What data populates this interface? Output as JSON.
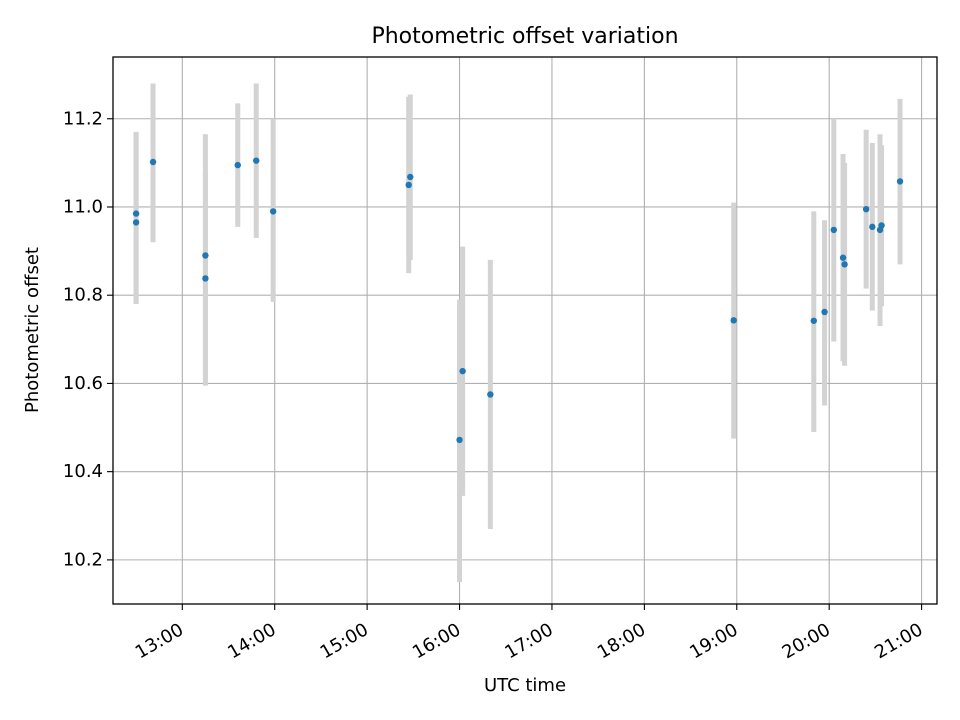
{
  "chart_data": {
    "type": "scatter",
    "title": "Photometric offset variation",
    "xlabel": "UTC time",
    "ylabel": "Photometric offset",
    "x_ticks": [
      "13:00",
      "14:00",
      "15:00",
      "16:00",
      "17:00",
      "18:00",
      "19:00",
      "20:00",
      "21:00"
    ],
    "y_ticks": [
      "10.2",
      "10.4",
      "10.6",
      "10.8",
      "11.0",
      "11.2"
    ],
    "xlim": [
      "12:15",
      "21:10"
    ],
    "ylim": [
      10.1,
      11.34
    ],
    "grid": true,
    "point_color": "#1f77b4",
    "errorbar_color": "#d3d3d3",
    "points": [
      {
        "x": "12:30",
        "y": 10.985,
        "lo": 10.78,
        "hi": 11.17
      },
      {
        "x": "12:30",
        "y": 10.965,
        "lo": 10.78,
        "hi": 11.17
      },
      {
        "x": "12:41",
        "y": 11.102,
        "lo": 10.92,
        "hi": 11.28
      },
      {
        "x": "13:15",
        "y": 10.89,
        "lo": 10.61,
        "hi": 11.165
      },
      {
        "x": "13:15",
        "y": 10.838,
        "lo": 10.595,
        "hi": 11.08
      },
      {
        "x": "13:36",
        "y": 11.095,
        "lo": 10.955,
        "hi": 11.235
      },
      {
        "x": "13:48",
        "y": 11.105,
        "lo": 10.93,
        "hi": 11.28
      },
      {
        "x": "13:59",
        "y": 10.99,
        "lo": 10.785,
        "hi": 11.2
      },
      {
        "x": "15:27",
        "y": 11.05,
        "lo": 10.85,
        "hi": 11.25
      },
      {
        "x": "15:28",
        "y": 11.068,
        "lo": 10.88,
        "hi": 11.255
      },
      {
        "x": "16:00",
        "y": 10.472,
        "lo": 10.15,
        "hi": 10.79
      },
      {
        "x": "16:02",
        "y": 10.628,
        "lo": 10.345,
        "hi": 10.91
      },
      {
        "x": "16:20",
        "y": 10.575,
        "lo": 10.27,
        "hi": 10.88
      },
      {
        "x": "18:58",
        "y": 10.743,
        "lo": 10.475,
        "hi": 11.01
      },
      {
        "x": "19:50",
        "y": 10.742,
        "lo": 10.49,
        "hi": 10.99
      },
      {
        "x": "19:57",
        "y": 10.762,
        "lo": 10.55,
        "hi": 10.97
      },
      {
        "x": "20:03",
        "y": 10.948,
        "lo": 10.695,
        "hi": 11.2
      },
      {
        "x": "20:09",
        "y": 10.885,
        "lo": 10.65,
        "hi": 11.12
      },
      {
        "x": "20:10",
        "y": 10.87,
        "lo": 10.64,
        "hi": 11.1
      },
      {
        "x": "20:24",
        "y": 10.995,
        "lo": 10.815,
        "hi": 11.175
      },
      {
        "x": "20:28",
        "y": 10.955,
        "lo": 10.765,
        "hi": 11.145
      },
      {
        "x": "20:33",
        "y": 10.948,
        "lo": 10.73,
        "hi": 11.165
      },
      {
        "x": "20:34",
        "y": 10.958,
        "lo": 10.775,
        "hi": 11.14
      },
      {
        "x": "20:46",
        "y": 11.058,
        "lo": 10.87,
        "hi": 11.245
      }
    ]
  }
}
